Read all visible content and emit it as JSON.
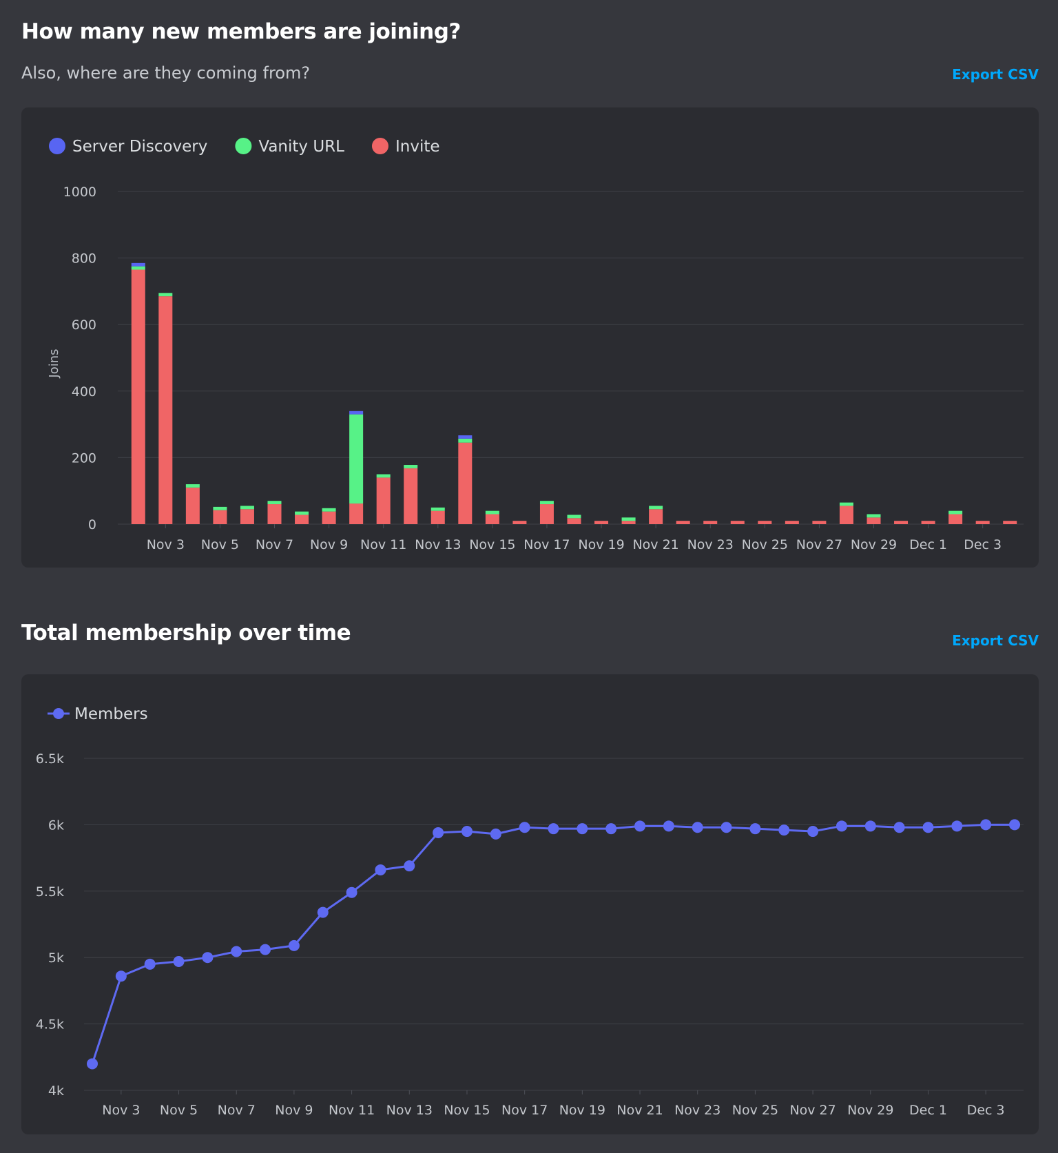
{
  "joins_section": {
    "title": "How many new members are joining?",
    "subtitle": "Also, where are they coming from?",
    "export_label": "Export CSV"
  },
  "membership_section": {
    "title": "Total membership over time",
    "export_label": "Export CSV"
  },
  "colors": {
    "server_discovery": "#5865f2",
    "vanity_url": "#57f287",
    "invite": "#f06566",
    "members_line": "#5e6af2",
    "link": "#00a8fc"
  },
  "chart_data": [
    {
      "type": "bar",
      "stacked": true,
      "ylabel": "Joins",
      "ylim": [
        0,
        1000
      ],
      "yticks": [
        0,
        200,
        400,
        600,
        800,
        1000
      ],
      "yticklabels": [
        "0",
        "200",
        "400",
        "600",
        "800",
        "1000"
      ],
      "grid": true,
      "legend_position": "top-left",
      "categories": [
        "Nov 2",
        "Nov 3",
        "Nov 4",
        "Nov 5",
        "Nov 6",
        "Nov 7",
        "Nov 8",
        "Nov 9",
        "Nov 10",
        "Nov 11",
        "Nov 12",
        "Nov 13",
        "Nov 14",
        "Nov 15",
        "Nov 16",
        "Nov 17",
        "Nov 18",
        "Nov 19",
        "Nov 20",
        "Nov 21",
        "Nov 22",
        "Nov 23",
        "Nov 24",
        "Nov 25",
        "Nov 26",
        "Nov 27",
        "Nov 28",
        "Nov 29",
        "Nov 30",
        "Dec 1",
        "Dec 2",
        "Dec 3",
        "Dec 4"
      ],
      "xticklabels": [
        {
          "category": "Nov 3",
          "label": "Nov 3"
        },
        {
          "category": "Nov 5",
          "label": "Nov 5"
        },
        {
          "category": "Nov 7",
          "label": "Nov 7"
        },
        {
          "category": "Nov 9",
          "label": "Nov 9"
        },
        {
          "category": "Nov 11",
          "label": "Nov 11"
        },
        {
          "category": "Nov 13",
          "label": "Nov 13"
        },
        {
          "category": "Nov 15",
          "label": "Nov 15"
        },
        {
          "category": "Nov 17",
          "label": "Nov 17"
        },
        {
          "category": "Nov 19",
          "label": "Nov 19"
        },
        {
          "category": "Nov 21",
          "label": "Nov 21"
        },
        {
          "category": "Nov 23",
          "label": "Nov 23"
        },
        {
          "category": "Nov 25",
          "label": "Nov 25"
        },
        {
          "category": "Nov 27",
          "label": "Nov 27"
        },
        {
          "category": "Nov 29",
          "label": "Nov 29"
        },
        {
          "category": "Dec 1",
          "label": "Dec 1"
        },
        {
          "category": "Dec 3",
          "label": "Dec 3"
        }
      ],
      "series": [
        {
          "name": "Invite",
          "color_key": "invite",
          "values": [
            765,
            685,
            110,
            42,
            45,
            60,
            28,
            38,
            62,
            140,
            168,
            40,
            245,
            30,
            10,
            60,
            18,
            10,
            10,
            45,
            10,
            10,
            10,
            10,
            10,
            10,
            55,
            20,
            10,
            10,
            30,
            10,
            10
          ]
        },
        {
          "name": "Vanity URL",
          "color_key": "vanity_url",
          "values": [
            10,
            10,
            10,
            10,
            10,
            10,
            10,
            10,
            268,
            10,
            10,
            10,
            12,
            10,
            0,
            10,
            10,
            0,
            10,
            10,
            0,
            0,
            0,
            0,
            0,
            0,
            10,
            10,
            0,
            0,
            10,
            0,
            0
          ]
        },
        {
          "name": "Server Discovery",
          "color_key": "server_discovery",
          "values": [
            10,
            0,
            0,
            0,
            0,
            0,
            0,
            0,
            10,
            0,
            0,
            0,
            10,
            0,
            0,
            0,
            0,
            0,
            0,
            0,
            0,
            0,
            0,
            0,
            0,
            0,
            0,
            0,
            0,
            0,
            0,
            0,
            0
          ]
        }
      ],
      "legend": [
        "Server Discovery",
        "Vanity URL",
        "Invite"
      ]
    },
    {
      "type": "line",
      "ylim": [
        4000,
        6500
      ],
      "yticks": [
        4000,
        4500,
        5000,
        5500,
        6000,
        6500
      ],
      "yticklabels": [
        "4k",
        "4.5k",
        "5k",
        "5.5k",
        "6k",
        "6.5k"
      ],
      "grid": true,
      "legend_position": "top-left",
      "categories": [
        "Nov 2",
        "Nov 3",
        "Nov 4",
        "Nov 5",
        "Nov 6",
        "Nov 7",
        "Nov 8",
        "Nov 9",
        "Nov 10",
        "Nov 11",
        "Nov 12",
        "Nov 13",
        "Nov 14",
        "Nov 15",
        "Nov 16",
        "Nov 17",
        "Nov 18",
        "Nov 19",
        "Nov 20",
        "Nov 21",
        "Nov 22",
        "Nov 23",
        "Nov 24",
        "Nov 25",
        "Nov 26",
        "Nov 27",
        "Nov 28",
        "Nov 29",
        "Nov 30",
        "Dec 1",
        "Dec 2",
        "Dec 3",
        "Dec 4"
      ],
      "xticklabels": [
        {
          "category": "Nov 3",
          "label": "Nov 3"
        },
        {
          "category": "Nov 5",
          "label": "Nov 5"
        },
        {
          "category": "Nov 7",
          "label": "Nov 7"
        },
        {
          "category": "Nov 9",
          "label": "Nov 9"
        },
        {
          "category": "Nov 11",
          "label": "Nov 11"
        },
        {
          "category": "Nov 13",
          "label": "Nov 13"
        },
        {
          "category": "Nov 15",
          "label": "Nov 15"
        },
        {
          "category": "Nov 17",
          "label": "Nov 17"
        },
        {
          "category": "Nov 19",
          "label": "Nov 19"
        },
        {
          "category": "Nov 21",
          "label": "Nov 21"
        },
        {
          "category": "Nov 23",
          "label": "Nov 23"
        },
        {
          "category": "Nov 25",
          "label": "Nov 25"
        },
        {
          "category": "Nov 27",
          "label": "Nov 27"
        },
        {
          "category": "Nov 29",
          "label": "Nov 29"
        },
        {
          "category": "Dec 1",
          "label": "Dec 1"
        },
        {
          "category": "Dec 3",
          "label": "Dec 3"
        }
      ],
      "series": [
        {
          "name": "Members",
          "color_key": "members_line",
          "values": [
            4200,
            4860,
            4950,
            4970,
            5000,
            5045,
            5060,
            5090,
            5340,
            5490,
            5660,
            5690,
            5940,
            5950,
            5930,
            5980,
            5970,
            5970,
            5970,
            5990,
            5990,
            5980,
            5980,
            5970,
            5960,
            5950,
            5990,
            5990,
            5980,
            5980,
            5990,
            6000,
            6000
          ]
        }
      ],
      "legend": [
        "Members"
      ]
    }
  ]
}
